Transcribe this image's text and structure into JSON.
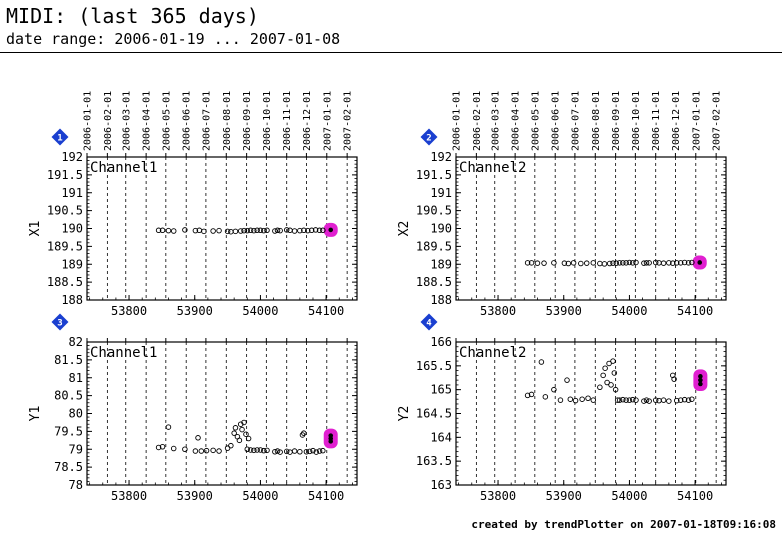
{
  "header": {
    "title": "MIDI: (last 365 days)",
    "subtitle": "date range: 2006-01-19 ... 2007-01-08"
  },
  "footer": {
    "text": "created by trendPlotter on 2007-01-18T09:16:08"
  },
  "colors": {
    "badge": "#1a3fd0",
    "highlight": "#e020d0",
    "grid": "#000000"
  },
  "chart_data": [
    {
      "type": "scatter",
      "badge": "1",
      "label": "Channel1",
      "ylabel": "X1",
      "xlim": [
        53736,
        54147
      ],
      "ylim": [
        188,
        192
      ],
      "yticks": [
        188,
        188.5,
        189,
        189.5,
        190,
        190.5,
        191,
        191.5,
        192
      ],
      "xticks": [
        53800,
        53900,
        54000,
        54100
      ],
      "date_ticks": [
        {
          "label": "2006-01-01",
          "x": 53736
        },
        {
          "label": "2006-02-01",
          "x": 53767
        },
        {
          "label": "2006-03-01",
          "x": 53795
        },
        {
          "label": "2006-04-01",
          "x": 53826
        },
        {
          "label": "2006-05-01",
          "x": 53856
        },
        {
          "label": "2006-06-01",
          "x": 53887
        },
        {
          "label": "2006-07-01",
          "x": 53917
        },
        {
          "label": "2006-08-01",
          "x": 53948
        },
        {
          "label": "2006-09-01",
          "x": 53979
        },
        {
          "label": "2006-10-01",
          "x": 54009
        },
        {
          "label": "2006-11-01",
          "x": 54040
        },
        {
          "label": "2006-12-01",
          "x": 54070
        },
        {
          "label": "2007-01-01",
          "x": 54101
        },
        {
          "label": "2007-02-01",
          "x": 54132
        }
      ],
      "points": [
        [
          53845,
          189.95
        ],
        [
          53851,
          189.95
        ],
        [
          53860,
          189.94
        ],
        [
          53868,
          189.93
        ],
        [
          53885,
          189.96
        ],
        [
          53901,
          189.94
        ],
        [
          53907,
          189.95
        ],
        [
          53914,
          189.92
        ],
        [
          53928,
          189.93
        ],
        [
          53937,
          189.94
        ],
        [
          53950,
          189.92
        ],
        [
          53955,
          189.91
        ],
        [
          53962,
          189.92
        ],
        [
          53970,
          189.93
        ],
        [
          53975,
          189.94
        ],
        [
          53980,
          189.94
        ],
        [
          53985,
          189.95
        ],
        [
          53990,
          189.94
        ],
        [
          53995,
          189.95
        ],
        [
          54000,
          189.95
        ],
        [
          54005,
          189.94
        ],
        [
          54010,
          189.95
        ],
        [
          54022,
          189.93
        ],
        [
          54026,
          189.95
        ],
        [
          54030,
          189.94
        ],
        [
          54040,
          189.96
        ],
        [
          54045,
          189.95
        ],
        [
          54052,
          189.93
        ],
        [
          54060,
          189.94
        ],
        [
          54066,
          189.95
        ],
        [
          54072,
          189.94
        ],
        [
          54078,
          189.95
        ],
        [
          54084,
          189.96
        ],
        [
          54090,
          189.95
        ],
        [
          54095,
          189.95
        ]
      ],
      "highlight": [
        [
          54107,
          189.96
        ]
      ]
    },
    {
      "type": "scatter",
      "badge": "2",
      "label": "Channel2",
      "ylabel": "X2",
      "xlim": [
        53736,
        54147
      ],
      "ylim": [
        188,
        192
      ],
      "yticks": [
        188,
        188.5,
        189,
        189.5,
        190,
        190.5,
        191,
        191.5,
        192
      ],
      "xticks": [
        53800,
        53900,
        54000,
        54100
      ],
      "date_ticks": [
        {
          "label": "2006-01-01",
          "x": 53736
        },
        {
          "label": "2006-02-01",
          "x": 53767
        },
        {
          "label": "2006-03-01",
          "x": 53795
        },
        {
          "label": "2006-04-01",
          "x": 53826
        },
        {
          "label": "2006-05-01",
          "x": 53856
        },
        {
          "label": "2006-06-01",
          "x": 53887
        },
        {
          "label": "2006-07-01",
          "x": 53917
        },
        {
          "label": "2006-08-01",
          "x": 53948
        },
        {
          "label": "2006-09-01",
          "x": 53979
        },
        {
          "label": "2006-10-01",
          "x": 54009
        },
        {
          "label": "2006-11-01",
          "x": 54040
        },
        {
          "label": "2006-12-01",
          "x": 54070
        },
        {
          "label": "2007-01-01",
          "x": 54101
        },
        {
          "label": "2007-02-01",
          "x": 54132
        }
      ],
      "points": [
        [
          53845,
          189.04
        ],
        [
          53851,
          189.04
        ],
        [
          53860,
          189.03
        ],
        [
          53870,
          189.03
        ],
        [
          53885,
          189.04
        ],
        [
          53901,
          189.03
        ],
        [
          53907,
          189.02
        ],
        [
          53915,
          189.04
        ],
        [
          53926,
          189.02
        ],
        [
          53935,
          189.03
        ],
        [
          53945,
          189.04
        ],
        [
          53955,
          189.02
        ],
        [
          53962,
          189.01
        ],
        [
          53970,
          189.02
        ],
        [
          53975,
          189.03
        ],
        [
          53980,
          189.03
        ],
        [
          53985,
          189.04
        ],
        [
          53990,
          189.04
        ],
        [
          53995,
          189.04
        ],
        [
          54000,
          189.05
        ],
        [
          54005,
          189.04
        ],
        [
          54010,
          189.05
        ],
        [
          54022,
          189.03
        ],
        [
          54026,
          189.04
        ],
        [
          54030,
          189.04
        ],
        [
          54040,
          189.05
        ],
        [
          54045,
          189.04
        ],
        [
          54052,
          189.03
        ],
        [
          54060,
          189.04
        ],
        [
          54066,
          189.03
        ],
        [
          54072,
          189.04
        ],
        [
          54078,
          189.04
        ],
        [
          54084,
          189.05
        ],
        [
          54090,
          189.04
        ],
        [
          54095,
          189.05
        ]
      ],
      "highlight": [
        [
          54107,
          189.05
        ]
      ]
    },
    {
      "type": "scatter",
      "badge": "3",
      "label": "Channel1",
      "ylabel": "Y1",
      "xlim": [
        53736,
        54147
      ],
      "ylim": [
        78,
        82
      ],
      "yticks": [
        78,
        78.5,
        79,
        79.5,
        80,
        80.5,
        81,
        81.5,
        82
      ],
      "xticks": [
        53800,
        53900,
        54000,
        54100
      ],
      "date_ticks": [
        {
          "label": "2006-01-01",
          "x": 53736
        },
        {
          "label": "2006-02-01",
          "x": 53767
        },
        {
          "label": "2006-03-01",
          "x": 53795
        },
        {
          "label": "2006-04-01",
          "x": 53826
        },
        {
          "label": "2006-05-01",
          "x": 53856
        },
        {
          "label": "2006-06-01",
          "x": 53887
        },
        {
          "label": "2006-07-01",
          "x": 53917
        },
        {
          "label": "2006-08-01",
          "x": 53948
        },
        {
          "label": "2006-09-01",
          "x": 53979
        },
        {
          "label": "2006-10-01",
          "x": 54009
        },
        {
          "label": "2006-11-01",
          "x": 54040
        },
        {
          "label": "2006-12-01",
          "x": 54070
        },
        {
          "label": "2007-01-01",
          "x": 54101
        },
        {
          "label": "2007-02-01",
          "x": 54132
        }
      ],
      "points": [
        [
          53845,
          79.05
        ],
        [
          53851,
          79.07
        ],
        [
          53860,
          79.62
        ],
        [
          53868,
          79.02
        ],
        [
          53885,
          79.0
        ],
        [
          53901,
          78.95
        ],
        [
          53905,
          79.32
        ],
        [
          53910,
          78.95
        ],
        [
          53918,
          78.96
        ],
        [
          53928,
          78.97
        ],
        [
          53937,
          78.95
        ],
        [
          53950,
          79.03
        ],
        [
          53955,
          79.1
        ],
        [
          53960,
          79.45
        ],
        [
          53962,
          79.6
        ],
        [
          53965,
          79.35
        ],
        [
          53968,
          79.25
        ],
        [
          53970,
          79.7
        ],
        [
          53972,
          79.55
        ],
        [
          53975,
          79.75
        ],
        [
          53978,
          79.42
        ],
        [
          53980,
          79.0
        ],
        [
          53982,
          79.3
        ],
        [
          53985,
          78.98
        ],
        [
          53990,
          78.97
        ],
        [
          53995,
          78.98
        ],
        [
          54000,
          78.98
        ],
        [
          54005,
          78.96
        ],
        [
          54010,
          78.97
        ],
        [
          54022,
          78.93
        ],
        [
          54026,
          78.95
        ],
        [
          54030,
          78.92
        ],
        [
          54040,
          78.94
        ],
        [
          54045,
          78.92
        ],
        [
          54052,
          78.95
        ],
        [
          54060,
          78.93
        ],
        [
          54064,
          79.4
        ],
        [
          54066,
          79.45
        ],
        [
          54070,
          78.93
        ],
        [
          54075,
          78.94
        ],
        [
          54080,
          78.96
        ],
        [
          54085,
          78.92
        ],
        [
          54090,
          78.95
        ],
        [
          54095,
          78.96
        ]
      ],
      "highlight": [
        [
          54107,
          79.3
        ],
        [
          54107,
          79.38
        ],
        [
          54107,
          79.22
        ]
      ]
    },
    {
      "type": "scatter",
      "badge": "4",
      "label": "Channel2",
      "ylabel": "Y2",
      "xlim": [
        53736,
        54147
      ],
      "ylim": [
        163,
        166
      ],
      "yticks": [
        163,
        163.5,
        164,
        164.5,
        165,
        165.5,
        166
      ],
      "xticks": [
        53800,
        53900,
        54000,
        54100
      ],
      "date_ticks": [
        {
          "label": "2006-01-01",
          "x": 53736
        },
        {
          "label": "2006-02-01",
          "x": 53767
        },
        {
          "label": "2006-03-01",
          "x": 53795
        },
        {
          "label": "2006-04-01",
          "x": 53826
        },
        {
          "label": "2006-05-01",
          "x": 53856
        },
        {
          "label": "2006-06-01",
          "x": 53887
        },
        {
          "label": "2006-07-01",
          "x": 53917
        },
        {
          "label": "2006-08-01",
          "x": 53948
        },
        {
          "label": "2006-09-01",
          "x": 53979
        },
        {
          "label": "2006-10-01",
          "x": 54009
        },
        {
          "label": "2006-11-01",
          "x": 54040
        },
        {
          "label": "2006-12-01",
          "x": 54070
        },
        {
          "label": "2007-01-01",
          "x": 54101
        },
        {
          "label": "2007-02-01",
          "x": 54132
        }
      ],
      "points": [
        [
          53845,
          164.88
        ],
        [
          53851,
          164.9
        ],
        [
          53866,
          165.58
        ],
        [
          53872,
          164.85
        ],
        [
          53885,
          165.0
        ],
        [
          53895,
          164.78
        ],
        [
          53905,
          165.2
        ],
        [
          53910,
          164.8
        ],
        [
          53918,
          164.77
        ],
        [
          53928,
          164.8
        ],
        [
          53937,
          164.82
        ],
        [
          53945,
          164.78
        ],
        [
          53955,
          165.05
        ],
        [
          53960,
          165.3
        ],
        [
          53963,
          165.45
        ],
        [
          53966,
          165.15
        ],
        [
          53969,
          165.55
        ],
        [
          53972,
          165.1
        ],
        [
          53975,
          165.6
        ],
        [
          53977,
          165.35
        ],
        [
          53979,
          165.0
        ],
        [
          53982,
          164.78
        ],
        [
          53985,
          164.78
        ],
        [
          53990,
          164.79
        ],
        [
          53995,
          164.78
        ],
        [
          54000,
          164.78
        ],
        [
          54005,
          164.79
        ],
        [
          54010,
          164.78
        ],
        [
          54022,
          164.76
        ],
        [
          54026,
          164.78
        ],
        [
          54030,
          164.76
        ],
        [
          54040,
          164.78
        ],
        [
          54045,
          164.77
        ],
        [
          54052,
          164.78
        ],
        [
          54060,
          164.76
        ],
        [
          54066,
          165.3
        ],
        [
          54068,
          165.22
        ],
        [
          54072,
          164.77
        ],
        [
          54078,
          164.78
        ],
        [
          54084,
          164.79
        ],
        [
          54090,
          164.78
        ],
        [
          54095,
          164.8
        ]
      ],
      "highlight": [
        [
          54108,
          165.2
        ],
        [
          54108,
          165.28
        ],
        [
          54108,
          165.12
        ]
      ]
    }
  ]
}
